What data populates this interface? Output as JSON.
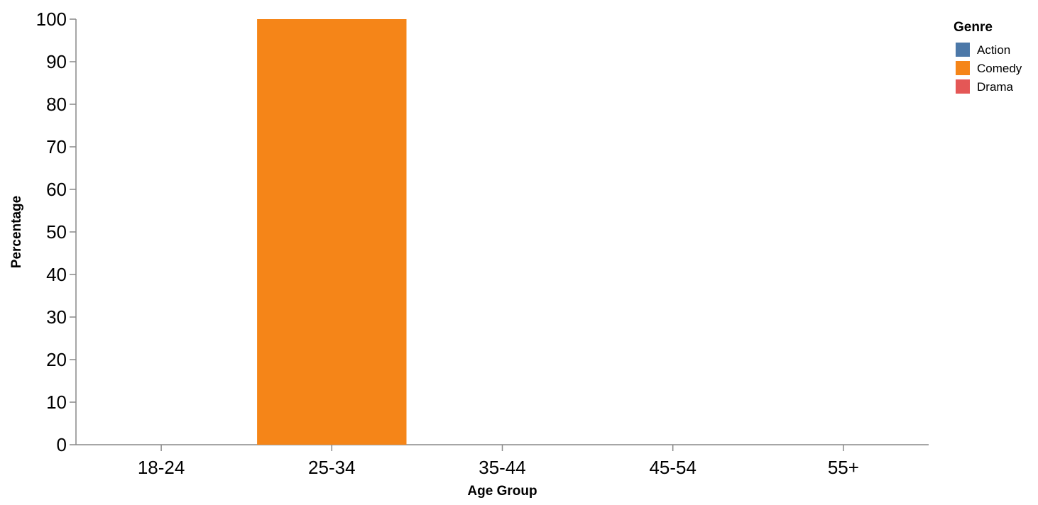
{
  "chart_data": {
    "type": "bar",
    "xlabel": "Age Group",
    "ylabel": "Percentage",
    "categories": [
      "18-24",
      "25-34",
      "35-44",
      "45-54",
      "55+"
    ],
    "ylim": [
      0,
      100
    ],
    "yticks": [
      0,
      10,
      20,
      30,
      40,
      50,
      60,
      70,
      80,
      90,
      100
    ],
    "grid": false,
    "legend": {
      "title": "Genre",
      "placement": "top-right",
      "entries": [
        {
          "name": "Action",
          "color": "#4c78a8"
        },
        {
          "name": "Comedy",
          "color": "#f58518"
        },
        {
          "name": "Drama",
          "color": "#e45756"
        }
      ]
    },
    "series": [
      {
        "name": "Comedy",
        "color": "#f58518",
        "values": [
          null,
          100,
          null,
          null,
          null
        ]
      }
    ]
  }
}
